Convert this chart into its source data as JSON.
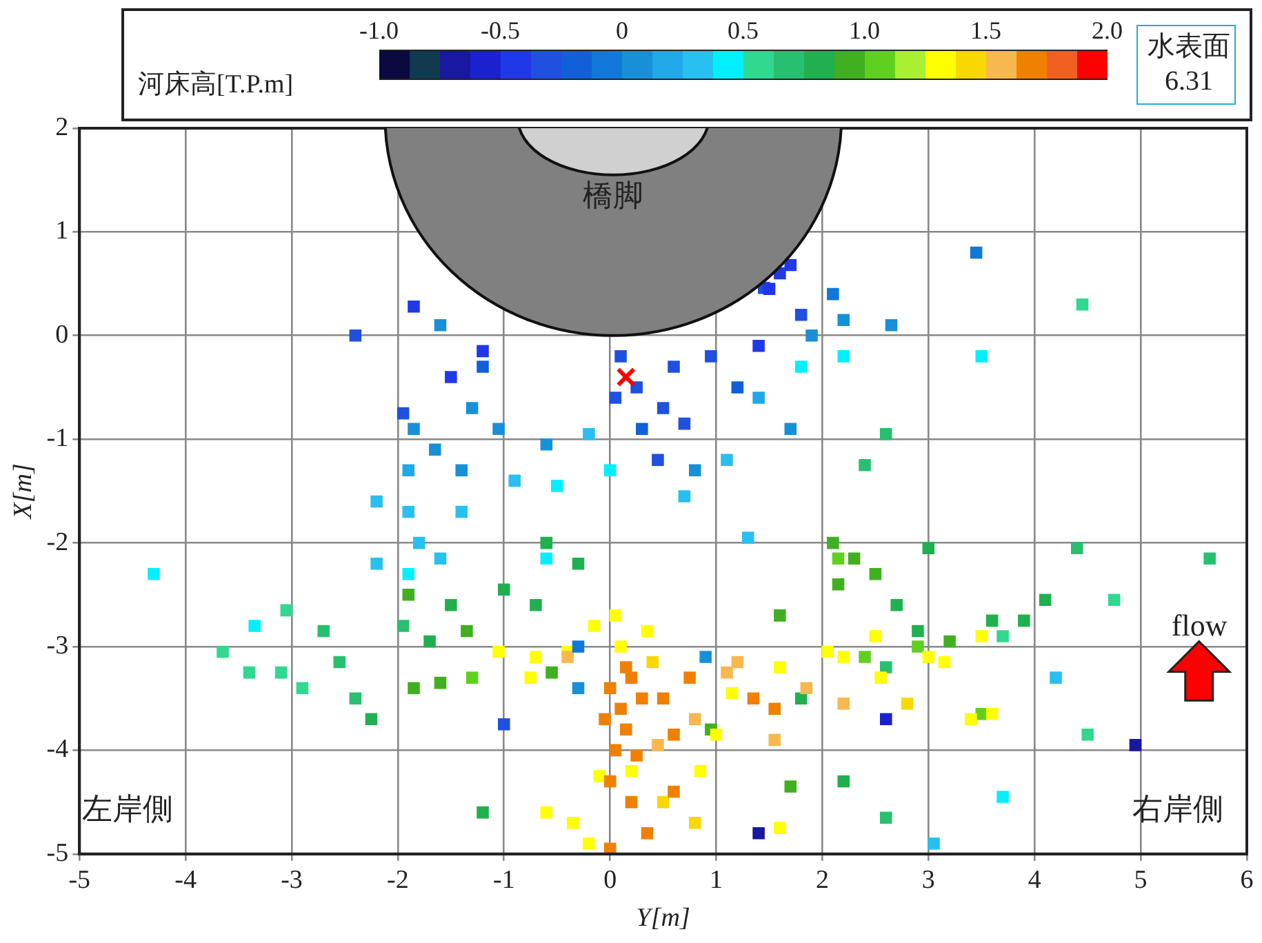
{
  "chart_data": {
    "type": "scatter",
    "xlabel": "Y[m]",
    "ylabel": "X[m]",
    "clabel": "河床高[T.P.m]",
    "clim": [
      -1,
      2
    ],
    "cticks": [
      {
        "value": -1,
        "label": "-1.0"
      },
      -0.5,
      0,
      0.5,
      {
        "value": 1,
        "label": "1.0"
      },
      1.5,
      {
        "value": 2,
        "label": "2.0"
      }
    ],
    "xlim": [
      -5,
      6
    ],
    "xticks": [
      -5,
      -4,
      -3,
      -2,
      -1,
      0,
      1,
      2,
      3,
      4,
      5,
      6
    ],
    "ylim": [
      -5,
      2
    ],
    "yticks": [
      -5,
      -4,
      -3,
      -2,
      -1,
      0,
      1,
      2
    ],
    "grid": true,
    "legend": false,
    "annotations": [
      "橋脚",
      "左岸側",
      "右岸側",
      "flow",
      "水表面",
      "6.31"
    ],
    "series": [
      {
        "marker": "square",
        "x": [
          -2.4,
          -1.85,
          -1.6,
          -1.2,
          -1.5,
          -1.95,
          -1.85,
          -1.3,
          -1.2,
          -1.65,
          -1.9,
          -1.4,
          -1.05,
          -0.6,
          -0.2,
          0.05,
          0.25,
          0.1,
          0.5,
          0.3,
          0.7,
          0.6,
          0.95,
          1.2,
          1.45,
          1.7,
          1.5,
          1.6,
          1.8,
          2.2,
          2.65,
          3.45,
          2.1,
          1.9,
          1.4,
          0.8,
          0.45,
          1.4,
          1.7,
          2.2,
          3.5,
          -2.2,
          -1.9,
          -1.8,
          -1.9,
          -2.2,
          -1.6,
          -1.4,
          -0.6,
          -0.9,
          -0.5,
          0.0,
          -4.3,
          -3.35,
          1.1,
          0.7,
          1.3,
          4.2,
          3.7,
          3.05,
          1.8,
          -3.65,
          -3.4,
          -3.1,
          -3.05,
          -2.7,
          -2.55,
          -2.4,
          -2.25,
          -2.9,
          -1.95,
          -1.7,
          -1.5,
          -1.35,
          -1.9,
          -1.0,
          -0.7,
          -0.6,
          -0.3,
          -1.85,
          -1.6,
          -1.3,
          -1.2,
          -0.55,
          2.1,
          2.3,
          2.15,
          2.5,
          2.7,
          2.9,
          3.2,
          3.0,
          3.6,
          3.9,
          4.1,
          4.4,
          4.75,
          5.65,
          4.45,
          2.4,
          2.6,
          1.6,
          1.8,
          2.2,
          2.6,
          1.7,
          3.5,
          0.95,
          4.5,
          3.7,
          2.15,
          2.6,
          2.4,
          2.9,
          -1.05,
          -0.7,
          -0.75,
          -0.4,
          -0.15,
          0.05,
          0.1,
          0.35,
          0.4,
          -0.1,
          -0.6,
          -0.35,
          0.2,
          0.5,
          0.85,
          0.8,
          1.6,
          1.15,
          1.6,
          2.05,
          2.2,
          2.5,
          2.55,
          2.8,
          3.0,
          3.15,
          3.4,
          3.6,
          3.5,
          -0.2,
          1.0,
          0.0,
          0.1,
          0.15,
          0.05,
          0.2,
          -0.05,
          0.25,
          0.0,
          0.3,
          0.2,
          0.35,
          0.0,
          0.5,
          0.6,
          0.8,
          0.75,
          -0.4,
          1.2,
          1.35,
          1.55,
          1.85,
          2.2,
          1.55,
          0.45,
          0.6,
          1.1,
          0.15,
          -1.0,
          -0.3,
          -0.3,
          2.6,
          4.95,
          1.4,
          0.9
        ],
        "values": [
          0.0,
          0.28,
          0.1,
          -0.15,
          -0.4,
          -0.75,
          -0.9,
          -0.7,
          -0.3,
          -1.1,
          -1.3,
          -1.3,
          -0.9,
          -1.05,
          -0.95,
          -0.6,
          -0.5,
          -0.2,
          -0.7,
          -0.9,
          -0.85,
          -0.3,
          -0.2,
          -0.5,
          0.46,
          0.68,
          0.45,
          0.6,
          0.2,
          0.15,
          0.1,
          0.8,
          0.4,
          0.0,
          -0.1,
          -1.3,
          -1.2,
          -0.6,
          -0.9,
          -0.2,
          -0.2,
          -1.6,
          -1.7,
          -2.0,
          -2.3,
          -2.2,
          -2.15,
          -1.7,
          -2.15,
          -1.4,
          -1.45,
          -1.3,
          -2.3,
          -2.8,
          -1.2,
          -1.55,
          -1.95,
          -3.3,
          -4.45,
          -4.9,
          -0.3,
          -3.05,
          -3.25,
          -3.25,
          -2.65,
          -2.85,
          -3.15,
          -3.5,
          -3.7,
          -3.4,
          -2.8,
          -2.95,
          -2.6,
          -2.85,
          -2.5,
          -2.45,
          -2.6,
          -2.0,
          -2.2,
          -3.4,
          -3.35,
          -3.3,
          -4.6,
          -3.25,
          -2.0,
          -2.15,
          -2.4,
          -2.3,
          -2.6,
          -2.85,
          -2.95,
          -2.05,
          -2.75,
          -2.75,
          -2.55,
          -2.05,
          -2.55,
          -2.15,
          0.3,
          -1.25,
          -0.95,
          -2.7,
          -3.5,
          -4.3,
          -4.65,
          -4.35,
          -3.65,
          -3.8,
          -3.85,
          -2.9,
          -2.15,
          -3.2,
          -3.1,
          -3.0,
          -3.05,
          -3.1,
          -3.3,
          -3.05,
          -2.8,
          -2.7,
          -3.0,
          -2.85,
          -3.15,
          -4.25,
          -4.6,
          -4.7,
          -4.2,
          -4.5,
          -4.2,
          -4.7,
          -4.75,
          -3.45,
          -3.2,
          -3.05,
          -3.1,
          -2.9,
          -3.3,
          -3.55,
          -3.1,
          -3.15,
          -3.7,
          -3.65,
          -2.9,
          -4.9,
          -3.85,
          -3.4,
          -3.6,
          -3.8,
          -4.0,
          -3.3,
          -3.7,
          -4.05,
          -4.3,
          -3.5,
          -4.5,
          -4.8,
          -4.95,
          -3.5,
          -3.85,
          -3.7,
          -3.3,
          -3.1,
          -3.15,
          -3.5,
          -3.6,
          -3.4,
          -3.55,
          -3.9,
          -3.95,
          -4.4,
          -3.25,
          -3.2,
          -3.75,
          -3.0,
          -3.4,
          -3.7,
          -3.95,
          -4.8,
          -3.1
        ],
        "cvalues": [
          -0.3,
          -0.5,
          0.1,
          -0.5,
          -0.4,
          -0.3,
          0.0,
          0.1,
          -0.2,
          0.1,
          0.2,
          0.1,
          0.0,
          0.1,
          0.3,
          -0.3,
          -0.3,
          -0.3,
          -0.3,
          -0.2,
          -0.3,
          -0.3,
          -0.3,
          -0.2,
          -0.3,
          -0.4,
          -0.4,
          -0.4,
          -0.3,
          0.0,
          0.0,
          -0.1,
          -0.1,
          0.1,
          -0.5,
          0.0,
          -0.3,
          0.2,
          0.0,
          0.4,
          0.4,
          0.3,
          0.3,
          0.3,
          0.4,
          0.3,
          0.3,
          0.3,
          0.4,
          0.3,
          0.4,
          0.4,
          0.4,
          0.4,
          0.3,
          0.3,
          0.25,
          0.3,
          0.4,
          0.3,
          0.4,
          0.6,
          0.6,
          0.6,
          0.6,
          0.7,
          0.7,
          0.7,
          0.75,
          0.6,
          0.7,
          0.8,
          0.8,
          0.9,
          0.9,
          0.8,
          0.75,
          0.75,
          0.8,
          0.95,
          0.95,
          1.0,
          0.85,
          0.95,
          0.9,
          0.95,
          0.95,
          0.9,
          0.85,
          0.85,
          0.9,
          0.75,
          0.8,
          0.8,
          0.75,
          0.7,
          0.6,
          0.65,
          0.6,
          0.7,
          0.7,
          0.9,
          0.85,
          0.8,
          0.7,
          0.95,
          1.0,
          0.95,
          0.6,
          0.6,
          1.0,
          0.7,
          1.1,
          1.1,
          1.3,
          1.3,
          1.3,
          1.3,
          1.3,
          1.3,
          1.3,
          1.3,
          1.4,
          1.3,
          1.3,
          1.35,
          1.3,
          1.4,
          1.3,
          1.4,
          1.3,
          1.3,
          1.3,
          1.3,
          1.35,
          1.3,
          1.35,
          1.4,
          1.3,
          1.3,
          1.3,
          1.3,
          1.3,
          1.3,
          1.3,
          1.7,
          1.7,
          1.7,
          1.7,
          1.7,
          1.7,
          1.7,
          1.7,
          1.7,
          1.7,
          1.7,
          1.7,
          1.65,
          1.7,
          1.6,
          1.7,
          1.6,
          1.6,
          1.65,
          1.7,
          1.6,
          1.6,
          1.6,
          1.6,
          1.65,
          1.6,
          1.7,
          -0.3,
          -0.1,
          0.0,
          -0.6,
          -0.65,
          -0.7,
          0.0
        ],
        "colors": [
          "#2050e0",
          "#2038e8",
          "#1890d8",
          "#2038e8",
          "#2038e8",
          "#2050e0",
          "#1890d8",
          "#1890d8",
          "#1060d8",
          "#1890d8",
          "#20a8e8",
          "#1890d8",
          "#1890d8",
          "#1890d8",
          "#28c0f0",
          "#2050e0",
          "#2050e0",
          "#2050e0",
          "#2050e0",
          "#1060d8",
          "#2050e0",
          "#2050e0",
          "#2050e0",
          "#1060d8",
          "#2050e0",
          "#2038e8",
          "#2038e8",
          "#2038e8",
          "#2050e0",
          "#1890d8",
          "#1890d8",
          "#1078d8",
          "#1078d8",
          "#1890d8",
          "#2038e8",
          "#1890d8",
          "#2050e0",
          "#20a8e8",
          "#1890d8",
          "#00f0ff",
          "#00f0ff",
          "#28c0f0",
          "#28c0f0",
          "#28c0f0",
          "#00f0ff",
          "#28c0f0",
          "#28c0f0",
          "#28c0f0",
          "#00f0ff",
          "#28c0f0",
          "#00f0ff",
          "#00f0ff",
          "#00f0ff",
          "#00f0ff",
          "#28c0f0",
          "#28c0f0",
          "#28c0f0",
          "#28c0f0",
          "#00f0ff",
          "#28c0f0",
          "#00f0ff",
          "#30d890",
          "#30d890",
          "#30d890",
          "#30d890",
          "#28c070",
          "#28c070",
          "#28c070",
          "#20b050",
          "#30d890",
          "#28c070",
          "#20b050",
          "#20b050",
          "#40b020",
          "#40b020",
          "#20b050",
          "#20b050",
          "#20b050",
          "#20b050",
          "#40b020",
          "#40b020",
          "#60d020",
          "#20b050",
          "#40b020",
          "#40b020",
          "#40b020",
          "#40b020",
          "#40b020",
          "#20b050",
          "#20b050",
          "#40b020",
          "#20b050",
          "#20b050",
          "#20b050",
          "#20b050",
          "#28c070",
          "#30d890",
          "#28c070",
          "#30d890",
          "#28c070",
          "#28c070",
          "#40b020",
          "#20b050",
          "#20b050",
          "#28c070",
          "#40b020",
          "#60d020",
          "#40b020",
          "#30d890",
          "#30d890",
          "#60d020",
          "#28c070",
          "#60d020",
          "#60d020",
          "#ffff00",
          "#ffff00",
          "#ffff00",
          "#ffff00",
          "#ffff00",
          "#ffff00",
          "#ffff00",
          "#ffff00",
          "#f8d800",
          "#ffff00",
          "#ffff00",
          "#ffff00",
          "#ffff00",
          "#f8d800",
          "#ffff00",
          "#f8d800",
          "#ffff00",
          "#ffff00",
          "#ffff00",
          "#ffff00",
          "#ffff00",
          "#ffff00",
          "#ffff00",
          "#f8d800",
          "#ffff00",
          "#ffff00",
          "#ffff00",
          "#ffff00",
          "#ffff00",
          "#ffff00",
          "#ffff00",
          "#f08000",
          "#f08000",
          "#f08000",
          "#f08000",
          "#f08000",
          "#f08000",
          "#f08000",
          "#f08000",
          "#f08000",
          "#f08000",
          "#f08000",
          "#f08000",
          "#f08000",
          "#f08000",
          "#f8b850",
          "#f08000",
          "#f8b850",
          "#f8b850",
          "#f08000",
          "#f08000",
          "#f8b850",
          "#f8b850",
          "#f8b850",
          "#f8b850",
          "#f08000",
          "#f8b850",
          "#f08000",
          "#2050e0",
          "#1078d8",
          "#1890d8",
          "#1a22d0",
          "#1818a0",
          "#1818a0",
          "#1890d8"
        ]
      },
      {
        "marker": "cross",
        "color": "#ff0000",
        "x": [
          0.15
        ],
        "values": [
          -0.4
        ]
      }
    ]
  }
}
